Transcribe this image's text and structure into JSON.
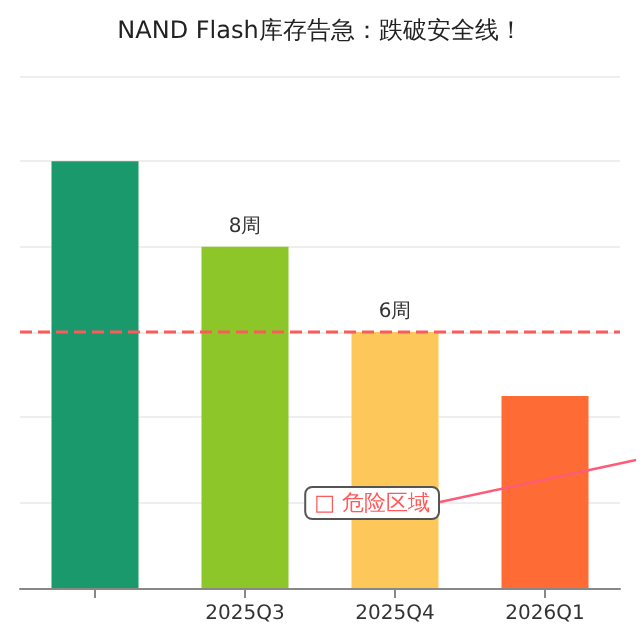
{
  "chart_data": {
    "type": "bar",
    "title": "NAND Flash库存告急：跌破安全线！",
    "categories": [
      null,
      "2025Q3",
      "2025Q4",
      "2026Q1"
    ],
    "values": [
      10,
      8,
      6,
      4.5
    ],
    "colors": [
      "#1a9a6c",
      "#8cc628",
      "#fdc75a",
      "#ff6b35"
    ],
    "value_labels": [
      null,
      "8周",
      "6周",
      null
    ],
    "ylim": [
      0,
      12
    ],
    "yticks": [
      {
        "value": 0,
        "label": null
      },
      {
        "value": 2,
        "label": null
      },
      {
        "value": 4,
        "label": null
      },
      {
        "value": 6,
        "label": null
      },
      {
        "value": 8,
        "label": null
      },
      {
        "value": 10,
        "label": null
      },
      {
        "value": 12,
        "label": null
      }
    ],
    "tick_labels": "x",
    "grid": "y",
    "ref_lines": [
      {
        "axis": "y",
        "value": 6,
        "color": "#ff5a5a",
        "line_style": "dashed"
      }
    ],
    "annotations": [
      "□ 危险区域"
    ]
  }
}
